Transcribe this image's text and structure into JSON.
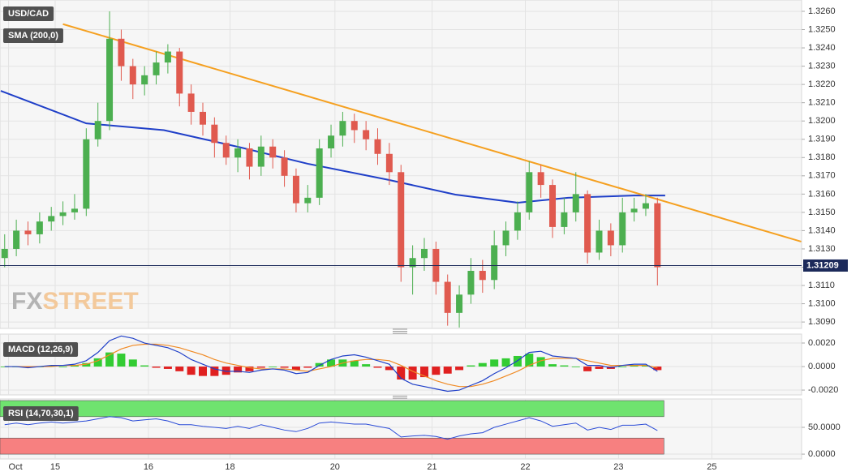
{
  "chart_data": [
    {
      "type": "candlestick",
      "title": "USD/CAD",
      "x": [
        -13,
        -10,
        -7,
        -4,
        -1,
        2,
        5,
        8,
        11,
        14,
        17,
        20,
        23,
        26,
        29,
        32,
        35,
        38,
        41,
        44,
        47,
        50,
        53,
        56,
        59,
        62,
        65,
        68,
        71,
        74,
        77,
        80,
        83,
        86,
        89,
        92,
        95,
        98,
        101,
        104,
        107,
        110,
        113,
        116,
        119,
        122,
        125,
        128,
        131,
        134,
        137,
        140,
        143,
        146,
        149,
        152,
        155
      ],
      "open": [
        1.3125,
        1.313,
        1.314,
        1.3138,
        1.3145,
        1.3148,
        1.315,
        1.3152,
        1.319,
        1.32,
        1.3245,
        1.323,
        1.322,
        1.3225,
        1.3232,
        1.3238,
        1.3215,
        1.3205,
        1.3198,
        1.3188,
        1.318,
        1.3185,
        1.3175,
        1.3186,
        1.318,
        1.317,
        1.3155,
        1.3158,
        1.3185,
        1.3192,
        1.32,
        1.3195,
        1.319,
        1.3182,
        1.3172,
        1.312,
        1.3125,
        1.313,
        1.3112,
        1.3095,
        1.3105,
        1.3118,
        1.3113,
        1.3132,
        1.314,
        1.315,
        1.3172,
        1.3165,
        1.3142,
        1.315,
        1.316,
        1.3128,
        1.314,
        1.3132,
        1.315,
        1.3152,
        1.3155
      ],
      "high": [
        1.3138,
        1.3146,
        1.3145,
        1.315,
        1.3153,
        1.3156,
        1.316,
        1.3196,
        1.321,
        1.326,
        1.325,
        1.3234,
        1.323,
        1.3238,
        1.3242,
        1.324,
        1.322,
        1.321,
        1.3202,
        1.3192,
        1.319,
        1.3188,
        1.3192,
        1.319,
        1.3184,
        1.3174,
        1.3165,
        1.319,
        1.3198,
        1.3205,
        1.3204,
        1.32,
        1.3196,
        1.3188,
        1.3176,
        1.3132,
        1.3136,
        1.3134,
        1.3116,
        1.311,
        1.3125,
        1.3124,
        1.314,
        1.3145,
        1.3156,
        1.3178,
        1.3176,
        1.3168,
        1.3158,
        1.3172,
        1.3162,
        1.3146,
        1.3144,
        1.3158,
        1.3158,
        1.316,
        1.3158
      ],
      "low": [
        1.312,
        1.3126,
        1.3132,
        1.3133,
        1.314,
        1.3143,
        1.3146,
        1.3148,
        1.3186,
        1.3195,
        1.3222,
        1.3212,
        1.3214,
        1.322,
        1.3226,
        1.3208,
        1.3198,
        1.3192,
        1.318,
        1.3176,
        1.3172,
        1.3168,
        1.317,
        1.3174,
        1.3164,
        1.315,
        1.315,
        1.3154,
        1.318,
        1.3186,
        1.3188,
        1.3184,
        1.3176,
        1.3165,
        1.3112,
        1.3105,
        1.3118,
        1.3105,
        1.3088,
        1.3087,
        1.31,
        1.3106,
        1.3108,
        1.3126,
        1.3135,
        1.3146,
        1.3158,
        1.3136,
        1.3138,
        1.3145,
        1.3122,
        1.3124,
        1.3126,
        1.3128,
        1.3145,
        1.3148,
        1.311
      ],
      "close": [
        1.313,
        1.314,
        1.3138,
        1.3145,
        1.3148,
        1.315,
        1.3152,
        1.319,
        1.32,
        1.3245,
        1.323,
        1.322,
        1.3225,
        1.3232,
        1.3238,
        1.3215,
        1.3205,
        1.3198,
        1.3188,
        1.318,
        1.3185,
        1.3175,
        1.3186,
        1.318,
        1.317,
        1.3155,
        1.3158,
        1.3185,
        1.3192,
        1.32,
        1.3195,
        1.319,
        1.3182,
        1.3172,
        1.312,
        1.3125,
        1.313,
        1.3112,
        1.3095,
        1.3105,
        1.3118,
        1.3113,
        1.3132,
        1.314,
        1.315,
        1.3172,
        1.3165,
        1.3142,
        1.315,
        1.316,
        1.3128,
        1.314,
        1.3132,
        1.315,
        1.3152,
        1.3155,
        1.312
      ],
      "up_color": "#4caf50",
      "down_color": "#e05a4f",
      "overlays": [
        {
          "name": "SMA (200,0)",
          "color": "#1f3fc8",
          "x": [
            -14,
            8,
            28,
            48,
            65,
            86,
            103,
            119,
            132,
            149,
            157
          ],
          "values": [
            1.32165,
            1.31987,
            1.3195,
            1.31854,
            1.31766,
            1.31677,
            1.31597,
            1.31553,
            1.3158,
            1.31592,
            1.31592
          ]
        },
        {
          "color": "#f5a020",
          "x": [
            2,
            192
          ],
          "values": [
            1.3253,
            1.3134
          ]
        }
      ],
      "current_price": 1.31209,
      "current_price_color": "#1c2a5a",
      "xlim": [
        -14.2,
        192.1
      ],
      "ylim": [
        1.30865,
        1.32662
      ],
      "xticks": [
        {
          "value": -12,
          "label": "Oct"
        },
        {
          "value": 0,
          "label": "15"
        },
        {
          "value": 24,
          "label": "16"
        },
        {
          "value": 45,
          "label": "18"
        },
        {
          "value": 72,
          "label": "20"
        },
        {
          "value": 97,
          "label": "21"
        },
        {
          "value": 121,
          "label": "22"
        },
        {
          "value": 145,
          "label": "23"
        },
        {
          "value": 169,
          "label": "25"
        }
      ],
      "yticks": [
        {
          "value": 1.309,
          "label": "1.3090"
        },
        {
          "value": 1.31,
          "label": "1.3100"
        },
        {
          "value": 1.311,
          "label": "1.3110"
        },
        {
          "value": 1.312,
          "label": "1.3120"
        },
        {
          "value": 1.313,
          "label": "1.3130"
        },
        {
          "value": 1.314,
          "label": "1.3140"
        },
        {
          "value": 1.315,
          "label": "1.3150"
        },
        {
          "value": 1.316,
          "label": "1.3160"
        },
        {
          "value": 1.317,
          "label": "1.3170"
        },
        {
          "value": 1.318,
          "label": "1.3180"
        },
        {
          "value": 1.319,
          "label": "1.3190"
        },
        {
          "value": 1.32,
          "label": "1.3200"
        },
        {
          "value": 1.321,
          "label": "1.3210"
        },
        {
          "value": 1.322,
          "label": "1.3220"
        },
        {
          "value": 1.323,
          "label": "1.3230"
        },
        {
          "value": 1.324,
          "label": "1.3240"
        },
        {
          "value": 1.325,
          "label": "1.3250"
        },
        {
          "value": 1.326,
          "label": "1.3260"
        }
      ],
      "grid": true,
      "watermark": [
        "FX",
        "STREET"
      ]
    },
    {
      "type": "macd",
      "title": "MACD (12,26,9)",
      "x": [
        -13,
        -10,
        -7,
        -4,
        -1,
        2,
        5,
        8,
        11,
        14,
        17,
        20,
        23,
        26,
        29,
        32,
        35,
        38,
        41,
        44,
        47,
        50,
        53,
        56,
        59,
        62,
        65,
        68,
        71,
        74,
        77,
        80,
        83,
        86,
        89,
        92,
        95,
        98,
        101,
        104,
        107,
        110,
        113,
        116,
        119,
        122,
        125,
        128,
        131,
        134,
        137,
        140,
        143,
        146,
        149,
        152,
        155
      ],
      "macd": [
        0,
        0,
        -0.0001,
        0,
        0.0001,
        0.0001,
        0.0002,
        0.0005,
        0.0012,
        0.0022,
        0.0026,
        0.0024,
        0.002,
        0.0018,
        0.0016,
        0.0012,
        0.0006,
        0.0002,
        -0.0002,
        -0.0004,
        -0.0004,
        -0.0005,
        -0.0003,
        -0.0002,
        -0.0003,
        -0.0006,
        -0.0005,
        0.0001,
        0.0006,
        0.0009,
        0.001,
        0.0008,
        0.0005,
        0.0002,
        -0.001,
        -0.0015,
        -0.0017,
        -0.0019,
        -0.0021,
        -0.002,
        -0.0016,
        -0.0012,
        -0.0006,
        -0.0001,
        0.0005,
        0.0012,
        0.0013,
        0.0009,
        0.0008,
        0.0007,
        0.0001,
        0.0001,
        -0.0001,
        0.0001,
        0.0002,
        0.0002,
        -0.0004
      ],
      "signal": [
        0,
        0,
        0,
        0,
        0,
        0.0001,
        0.0001,
        0.0002,
        0.0005,
        0.001,
        0.0015,
        0.0018,
        0.0019,
        0.0019,
        0.0018,
        0.0016,
        0.0013,
        0.001,
        0.0006,
        0.0003,
        0.0001,
        -0.0001,
        -0.0002,
        -0.0002,
        -0.0002,
        -0.0003,
        -0.0004,
        -0.0002,
        0,
        0.0003,
        0.0005,
        0.0006,
        0.0006,
        0.0005,
        0.0001,
        -0.0004,
        -0.0008,
        -0.0012,
        -0.0015,
        -0.0017,
        -0.0017,
        -0.0015,
        -0.0012,
        -0.0008,
        -0.0004,
        0.0001,
        0.0005,
        0.0007,
        0.0007,
        0.0007,
        0.0005,
        0.0003,
        0.0001,
        0.0001,
        0.0001,
        0.0001,
        -0.0001
      ],
      "histogram": [
        0,
        0,
        -0.0001,
        0,
        0.0001,
        0,
        0.0001,
        0.0003,
        0.0007,
        0.0012,
        0.0011,
        0.0006,
        0.0001,
        -0.0001,
        -0.0002,
        -0.0004,
        -0.0007,
        -0.0008,
        -0.0008,
        -0.0007,
        -0.0005,
        -0.0004,
        -0.0001,
        0,
        -0.0001,
        -0.0003,
        -0.0001,
        0.0003,
        0.0006,
        0.0006,
        0.0005,
        0.0002,
        -0.0001,
        -0.0003,
        -0.0011,
        -0.0011,
        -0.0009,
        -0.0007,
        -0.0006,
        -0.0003,
        0.0001,
        0.0003,
        0.0006,
        0.0007,
        0.0009,
        0.0011,
        0.0008,
        0.0002,
        0.0001,
        0,
        -0.0004,
        -0.0002,
        -0.0002,
        0,
        0.0001,
        0.0001,
        -0.0003
      ],
      "macd_color": "#1f3fc8",
      "signal_color": "#f08a24",
      "up_color": "#33cc33",
      "down_color": "#e02020",
      "xlim": [
        -14.2,
        192.1
      ],
      "ylim": [
        -0.00241,
        0.00276
      ],
      "yticks": [
        {
          "value": -0.002,
          "label": "-0.0020"
        },
        {
          "value": 0,
          "label": "0.0000"
        },
        {
          "value": 0.002,
          "label": "0.0020"
        }
      ],
      "grid": true
    },
    {
      "type": "rsi",
      "title": "RSI (14,70,30,1)",
      "x": [
        -13,
        -10,
        -7,
        -4,
        -1,
        2,
        5,
        8,
        11,
        14,
        17,
        20,
        23,
        26,
        29,
        32,
        35,
        38,
        41,
        44,
        47,
        50,
        53,
        56,
        59,
        62,
        65,
        68,
        71,
        74,
        77,
        80,
        83,
        86,
        89,
        92,
        95,
        98,
        101,
        104,
        107,
        110,
        113,
        116,
        119,
        122,
        125,
        128,
        131,
        134,
        137,
        140,
        143,
        146,
        149,
        152,
        155
      ],
      "values": [
        55,
        58,
        55,
        58,
        60,
        58,
        60,
        62,
        66,
        70,
        68,
        62,
        64,
        66,
        62,
        55,
        55,
        52,
        50,
        48,
        52,
        48,
        55,
        50,
        45,
        42,
        48,
        58,
        60,
        58,
        56,
        56,
        52,
        48,
        32,
        34,
        35,
        33,
        28,
        34,
        38,
        40,
        50,
        56,
        62,
        68,
        62,
        52,
        55,
        58,
        45,
        50,
        46,
        54,
        54,
        56,
        44
      ],
      "color": "#2a4bd7",
      "bands": [
        {
          "from": 70,
          "to": 100,
          "color": "#6fe36f"
        },
        {
          "from": 0,
          "to": 30,
          "color": "#f78080"
        }
      ],
      "xlim": [
        -14.2,
        192.1
      ],
      "ylim": [
        -9,
        103
      ],
      "yticks": [
        {
          "value": 0,
          "label": "0.0000"
        },
        {
          "value": 50,
          "label": "50.0000"
        }
      ],
      "grid": true
    }
  ]
}
